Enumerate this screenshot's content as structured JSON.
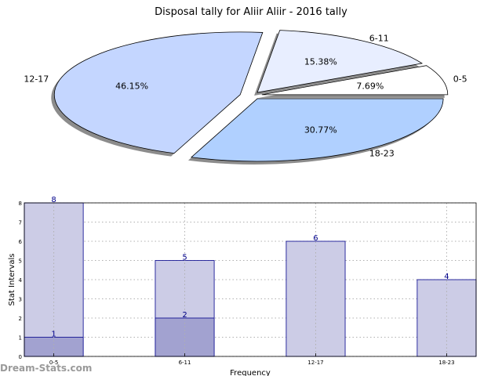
{
  "chart_data": [
    {
      "type": "pie",
      "title": "Disposal tally for Aliir Aliir - 2016 tally",
      "slices": [
        {
          "label": "0-5",
          "value": 7.69,
          "pct_label": "7.69%",
          "color": "#ffffff"
        },
        {
          "label": "6-11",
          "value": 15.38,
          "pct_label": "15.38%",
          "color": "#e8eeff"
        },
        {
          "label": "12-17",
          "value": 46.15,
          "pct_label": "46.15%",
          "color": "#c4d6ff"
        },
        {
          "label": "18-23",
          "value": 30.77,
          "pct_label": "30.77%",
          "color": "#b0d0ff"
        }
      ],
      "shadow": true,
      "exploded": true
    },
    {
      "type": "bar",
      "categories": [
        "0-5",
        "6-11",
        "12-17",
        "18-23"
      ],
      "series": [
        {
          "values": [
            8,
            5,
            6,
            4
          ],
          "color": "#cccce6"
        },
        {
          "values": [
            1,
            2,
            0,
            0
          ],
          "color": "#a2a2d0"
        }
      ],
      "value_labels": [
        {
          "category": "0-5",
          "value": 8,
          "text": "8"
        },
        {
          "category": "0-5",
          "value": 1,
          "text": "1"
        },
        {
          "category": "6-11",
          "value": 5,
          "text": "5"
        },
        {
          "category": "6-11",
          "value": 2,
          "text": "2"
        },
        {
          "category": "12-17",
          "value": 6,
          "text": "6"
        },
        {
          "category": "18-23",
          "value": 4,
          "text": "4"
        }
      ],
      "xlabel": "Frequency",
      "ylabel": "Stat Intervals",
      "ylim": [
        0,
        8
      ],
      "yticks": [
        "0",
        "1",
        "2",
        "3",
        "4",
        "5",
        "6",
        "7",
        "8"
      ],
      "grid": true
    }
  ],
  "watermark": "Dream-Stats.com"
}
